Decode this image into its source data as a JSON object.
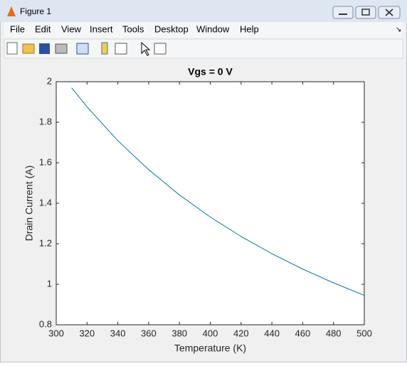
{
  "window": {
    "title": "Figure 1",
    "menu": [
      "File",
      "Edit",
      "View",
      "Insert",
      "Tools",
      "Desktop",
      "Window",
      "Help"
    ]
  },
  "chart_data": {
    "type": "line",
    "title": "Vgs = 0 V",
    "x_label": "Temperature (K)",
    "y_label": "Drain Current (A)",
    "x": [
      310,
      320,
      340,
      360,
      380,
      400,
      420,
      440,
      460,
      480,
      500
    ],
    "series": [
      {
        "name": "Drain Current",
        "color": "#0072bd",
        "values": [
          1.97,
          1.876,
          1.709,
          1.566,
          1.441,
          1.332,
          1.236,
          1.151,
          1.075,
          1.007,
          0.945
        ]
      }
    ],
    "xlim": [
      300,
      500
    ],
    "ylim": [
      0.8,
      2
    ],
    "xticks": [
      300,
      320,
      340,
      360,
      380,
      400,
      420,
      440,
      460,
      480,
      500
    ],
    "yticks": [
      0.8,
      1,
      1.2,
      1.4,
      1.6,
      1.8,
      2
    ],
    "grid": false
  }
}
